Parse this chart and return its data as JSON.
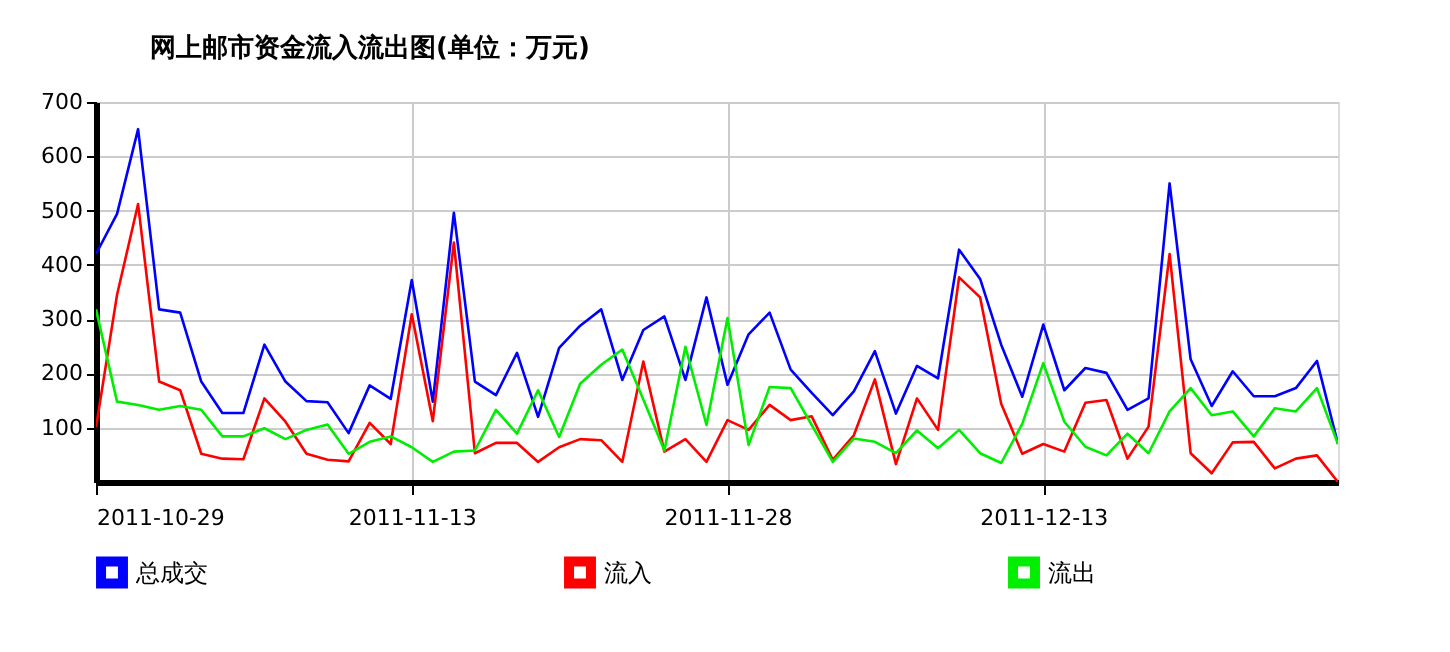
{
  "chart_data": {
    "type": "line",
    "title": "网上邮市资金流入流出图(单位：万元)",
    "x": [
      "2011-10-29",
      "2011-10-30",
      "2011-10-31",
      "2011-11-01",
      "2011-11-02",
      "2011-11-03",
      "2011-11-04",
      "2011-11-05",
      "2011-11-06",
      "2011-11-07",
      "2011-11-08",
      "2011-11-09",
      "2011-11-10",
      "2011-11-11",
      "2011-11-12",
      "2011-11-13",
      "2011-11-14",
      "2011-11-15",
      "2011-11-16",
      "2011-11-17",
      "2011-11-18",
      "2011-11-19",
      "2011-11-20",
      "2011-11-21",
      "2011-11-22",
      "2011-11-23",
      "2011-11-24",
      "2011-11-25",
      "2011-11-26",
      "2011-11-27",
      "2011-11-28",
      "2011-11-29",
      "2011-11-30",
      "2011-12-01",
      "2011-12-02",
      "2011-12-03",
      "2011-12-04",
      "2011-12-05",
      "2011-12-06",
      "2011-12-07",
      "2011-12-08",
      "2011-12-09",
      "2011-12-10",
      "2011-12-11",
      "2011-12-12",
      "2011-12-13",
      "2011-12-14",
      "2011-12-15",
      "2011-12-16",
      "2011-12-17",
      "2011-12-18",
      "2011-12-19",
      "2011-12-20",
      "2011-12-21",
      "2011-12-22",
      "2011-12-23",
      "2011-12-24",
      "2011-12-25",
      "2011-12-26",
      "2011-12-27"
    ],
    "xlim": [
      "2011-10-29",
      "2011-12-27"
    ],
    "xticks": [
      "2011-10-29",
      "2011-11-13",
      "2011-11-28",
      "2011-12-13"
    ],
    "ylim": [
      0,
      700
    ],
    "yticks": [
      100,
      200,
      300,
      400,
      500,
      600,
      700
    ],
    "grid": true,
    "legend": "bottom",
    "marker": "none",
    "line_style": "solid",
    "series": [
      {
        "name": "总成交",
        "color": "#0000ff",
        "values": [
          420,
          494,
          650,
          318,
          312,
          185,
          127,
          127,
          253,
          185,
          149,
          147,
          90,
          178,
          153,
          372,
          148,
          496,
          185,
          160,
          238,
          120,
          247,
          288,
          318,
          188,
          280,
          305,
          188,
          340,
          179,
          272,
          312,
          207,
          164,
          123,
          167,
          241,
          126,
          214,
          191,
          428,
          374,
          253,
          157,
          290,
          169,
          210,
          201,
          133,
          154,
          550,
          226,
          140,
          204,
          158,
          158,
          173,
          223,
          70
        ]
      },
      {
        "name": "流入",
        "color": "#ff0000",
        "values": [
          101,
          345,
          512,
          185,
          169,
          52,
          43,
          42,
          154,
          111,
          52,
          41,
          38,
          109,
          70,
          309,
          112,
          441,
          53,
          72,
          72,
          37,
          64,
          79,
          77,
          37,
          222,
          56,
          79,
          37,
          114,
          96,
          142,
          114,
          121,
          41,
          86,
          189,
          33,
          154,
          96,
          377,
          340,
          144,
          52,
          70,
          56,
          146,
          151,
          43,
          102,
          420,
          53,
          16,
          73,
          74,
          25,
          43,
          49,
          0
        ]
      },
      {
        "name": "流出",
        "color": "#00ee00",
        "values": [
          318,
          148,
          142,
          133,
          140,
          133,
          84,
          84,
          99,
          79,
          96,
          106,
          52,
          74,
          84,
          64,
          37,
          56,
          58,
          133,
          89,
          169,
          83,
          181,
          216,
          244,
          152,
          58,
          249,
          105,
          302,
          68,
          175,
          173,
          105,
          37,
          80,
          74,
          53,
          95,
          62,
          96,
          53,
          35,
          107,
          219,
          111,
          65,
          49,
          89,
          53,
          130,
          173,
          123,
          130,
          84,
          136,
          130,
          173,
          70
        ]
      }
    ]
  }
}
